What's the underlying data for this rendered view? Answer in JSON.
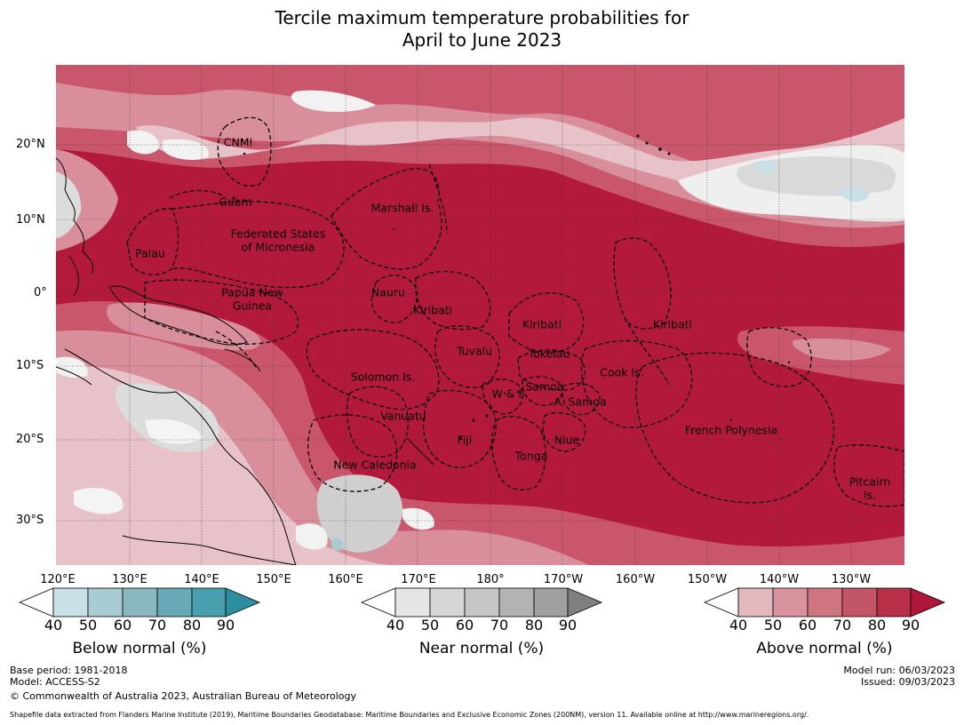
{
  "title_line1": "Tercile maximum temperature probabilities for",
  "title_line2": "April to June 2023",
  "lat_labels": [
    "20°N",
    "10°N",
    "0°",
    "10°S",
    "20°S",
    "30°S"
  ],
  "lon_labels": [
    "120°E",
    "130°E",
    "140°E",
    "150°E",
    "160°E",
    "170°E",
    "180°",
    "170°W",
    "160°W",
    "150°W",
    "140°W",
    "130°W"
  ],
  "regions": {
    "cnmi": "CNMI",
    "guam": "Guam",
    "palau": "Palau",
    "fsm_1": "Federated States",
    "fsm_2": "of Micronesia",
    "marshall": "Marshall Is.",
    "png_1": "Papua New",
    "png_2": "Guinea",
    "nauru": "Nauru",
    "kiribati_w": "Kiribati",
    "kiribati_c": "Kiribati",
    "kiribati_e": "Kiribati",
    "tuvalu": "Tuvalu",
    "tokelau": "Tokelau",
    "solomon": "Solomon Is.",
    "wf": "W & F",
    "samoa": "Samoa",
    "asamoa": "A. Samoa",
    "cook": "Cook Is.",
    "vanuatu": "Vanuatu",
    "fiji": "Fiji",
    "niue": "Niue",
    "tonga": "Tonga",
    "french_polynesia": "French Polynesia",
    "new_caledonia": "New Caledonia",
    "pitcairn_1": "Pitcairn",
    "pitcairn_2": "Is."
  },
  "colorbars": {
    "below": {
      "title": "Below normal (%)",
      "ticks": [
        "40",
        "50",
        "60",
        "70",
        "80",
        "90"
      ],
      "colors": [
        "#ffffff",
        "#c9e1e6",
        "#a9cbd2",
        "#8ab8c1",
        "#67a9b6",
        "#479fb0",
        "#2b8f9f"
      ]
    },
    "near": {
      "title": "Near normal (%)",
      "ticks": [
        "40",
        "50",
        "60",
        "70",
        "80",
        "90"
      ],
      "colors": [
        "#ffffff",
        "#e6e6e6",
        "#d6d6d6",
        "#c6c6c6",
        "#b3b3b3",
        "#a0a0a0",
        "#808080"
      ]
    },
    "above": {
      "title": "Above normal (%)",
      "ticks": [
        "40",
        "50",
        "60",
        "70",
        "80",
        "90"
      ],
      "colors": [
        "#ffffff",
        "#e3b8bf",
        "#d9939e",
        "#cf7580",
        "#c45566",
        "#b82f48",
        "#b0173a"
      ]
    }
  },
  "footer": {
    "base_period": "Base period: 1981-2018",
    "model": "Model: ACCESS-S2",
    "copyright": "© Commonwealth of Australia 2023, Australian Bureau of Meteorology",
    "model_run": "Model run: 06/03/2023",
    "issued": "Issued: 09/03/2023",
    "shapefile": "Shapefile data extracted from Flanders Marine Institute (2019), Maritime Boundaries Geodatabase: Maritime Boundaries and Exclusive Economic Zones (200NM), version 11. Available online at http://www.marineregions.org/."
  }
}
